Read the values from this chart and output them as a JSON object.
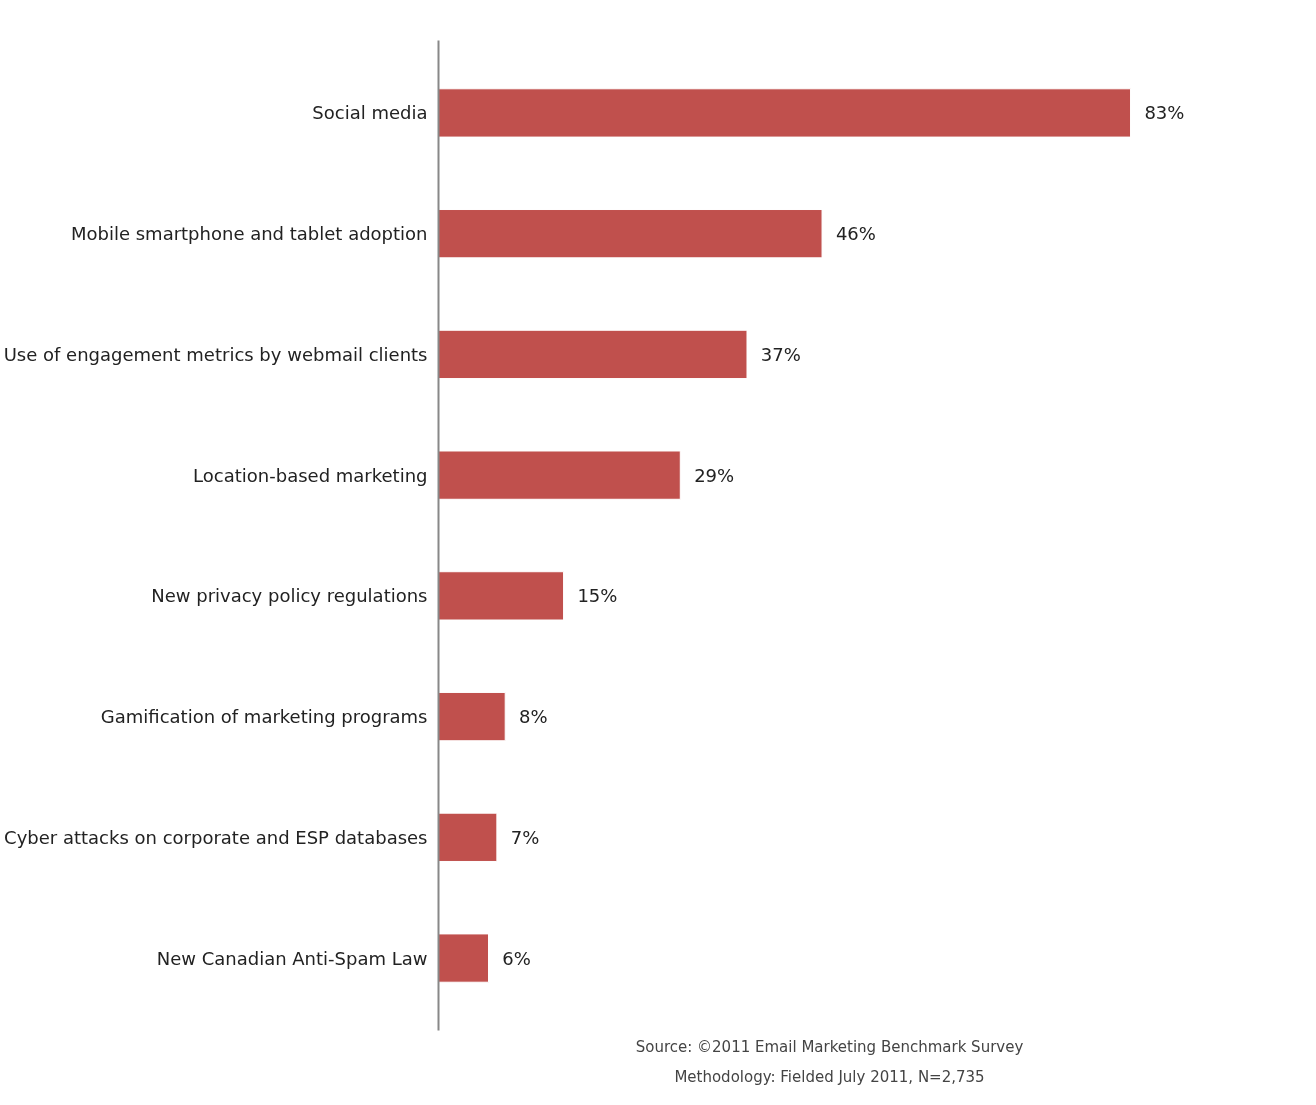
{
  "chart_data": {
    "type": "bar",
    "orientation": "horizontal",
    "categories": [
      "Social media",
      "Mobile smartphone and tablet adoption",
      "Use of engagement metrics by webmail clients",
      "Location-based marketing",
      "New privacy policy regulations",
      "Gamification of marketing programs",
      "Cyber attacks on corporate and ESP databases",
      "New Canadian Anti-Spam Law"
    ],
    "values": [
      83,
      46,
      37,
      29,
      15,
      8,
      7,
      6
    ],
    "value_labels": [
      "83%",
      "46%",
      "37%",
      "29%",
      "15%",
      "8%",
      "7%",
      "6%"
    ],
    "color": "#c0504d",
    "grid": false,
    "annotations": [
      "Source: ©2011 Email Marketing Benchmark Survey",
      "Methodology: Fielded July 2011, N=2,735"
    ]
  }
}
